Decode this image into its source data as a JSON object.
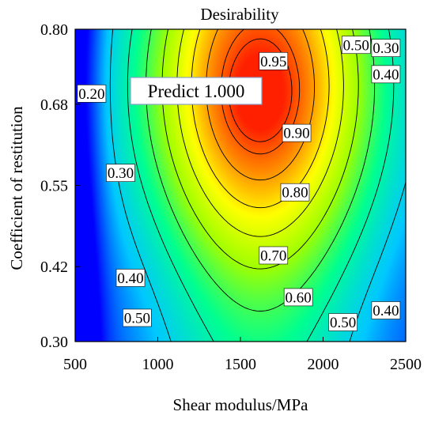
{
  "chart_data": {
    "type": "heatmap",
    "subtype": "contour",
    "title": "Desirability",
    "xlabel": "Shear modulus/MPa",
    "ylabel": "Coefficient of restitution",
    "xlim": [
      500,
      2500
    ],
    "ylim": [
      0.3,
      0.8
    ],
    "x_ticks": [
      "500",
      "1000",
      "1500",
      "2000",
      "2500"
    ],
    "y_ticks": [
      "0.30",
      "0.42",
      "0.55",
      "0.68",
      "0.80"
    ],
    "colorscale": [
      "#0000ff",
      "#00c8ff",
      "#00ff90",
      "#a0ff00",
      "#ffff00",
      "#ff8800",
      "#ff2000"
    ],
    "contour_levels": [
      0.2,
      0.3,
      0.4,
      0.5,
      0.6,
      0.7,
      0.8,
      0.9,
      0.95
    ],
    "contour_labels": [
      {
        "text": "0.20",
        "x": 600,
        "y": 0.697
      },
      {
        "text": "0.30",
        "x": 775,
        "y": 0.57
      },
      {
        "text": "0.40",
        "x": 835,
        "y": 0.402
      },
      {
        "text": "0.50",
        "x": 875,
        "y": 0.338
      },
      {
        "text": "0.60",
        "x": 1850,
        "y": 0.371
      },
      {
        "text": "0.70",
        "x": 1700,
        "y": 0.438
      },
      {
        "text": "0.80",
        "x": 1830,
        "y": 0.539
      },
      {
        "text": "0.90",
        "x": 1840,
        "y": 0.634
      },
      {
        "text": "0.95",
        "x": 1700,
        "y": 0.749
      },
      {
        "text": "0.50",
        "x": 2200,
        "y": 0.775
      },
      {
        "text": "0.30",
        "x": 2380,
        "y": 0.77
      },
      {
        "text": "0.40",
        "x": 2380,
        "y": 0.728
      },
      {
        "text": "0.50",
        "x": 2120,
        "y": 0.331
      },
      {
        "text": "0.40",
        "x": 2380,
        "y": 0.35
      }
    ],
    "annotation": {
      "text": "Predict  1.000",
      "point": {
        "x": 1620,
        "y": 0.69
      }
    }
  }
}
